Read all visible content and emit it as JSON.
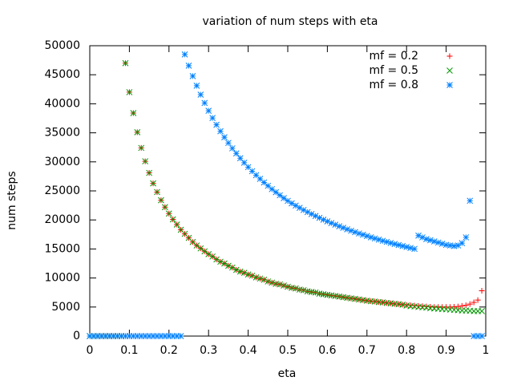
{
  "chart_data": {
    "type": "scatter",
    "title": "variation of num steps with eta",
    "x_label": "eta",
    "y_label": "num steps",
    "x": [
      0,
      0.01,
      0.02,
      0.03,
      0.04,
      0.05,
      0.06,
      0.07,
      0.08,
      0.09,
      0.1,
      0.11,
      0.12,
      0.13,
      0.14,
      0.15,
      0.16,
      0.17,
      0.18,
      0.19,
      0.2,
      0.21,
      0.22,
      0.23,
      0.24,
      0.25,
      0.26,
      0.27,
      0.28,
      0.29,
      0.3,
      0.31,
      0.32,
      0.33,
      0.34,
      0.35,
      0.36,
      0.37,
      0.38,
      0.39,
      0.4,
      0.41,
      0.42,
      0.43,
      0.44,
      0.45,
      0.46,
      0.47,
      0.48,
      0.49,
      0.5,
      0.51,
      0.52,
      0.53,
      0.54,
      0.55,
      0.56,
      0.57,
      0.58,
      0.59,
      0.6,
      0.61,
      0.62,
      0.63,
      0.64,
      0.65,
      0.66,
      0.67,
      0.68,
      0.69,
      0.7,
      0.71,
      0.72,
      0.73,
      0.74,
      0.75,
      0.76,
      0.77,
      0.78,
      0.79,
      0.8,
      0.81,
      0.82,
      0.83,
      0.84,
      0.85,
      0.86,
      0.87,
      0.88,
      0.89,
      0.9,
      0.91,
      0.92,
      0.93,
      0.94,
      0.95,
      0.96,
      0.97,
      0.98,
      0.99
    ],
    "series": [
      {
        "name": "mf = 0.2",
        "color": "#ff0000",
        "marker": "plus",
        "values": [
          0,
          0,
          0,
          0,
          0,
          0,
          0,
          0,
          0,
          47000,
          42000,
          38400,
          35100,
          32400,
          30100,
          28100,
          26300,
          24800,
          23400,
          22200,
          21100,
          20100,
          19200,
          18300,
          17600,
          16900,
          16200,
          15600,
          15100,
          14600,
          14100,
          13700,
          13200,
          12800,
          12500,
          12100,
          11800,
          11400,
          11100,
          10900,
          10600,
          10400,
          10100,
          9900,
          9700,
          9400,
          9200,
          9000,
          8900,
          8700,
          8500,
          8300,
          8200,
          8000,
          7900,
          7700,
          7600,
          7500,
          7300,
          7200,
          7100,
          7000,
          6900,
          6800,
          6700,
          6600,
          6500,
          6400,
          6300,
          6200,
          6100,
          6000,
          5950,
          5850,
          5800,
          5700,
          5650,
          5550,
          5500,
          5400,
          5350,
          5300,
          5250,
          5200,
          5150,
          5100,
          5050,
          5000,
          5000,
          5000,
          5000,
          5000,
          5050,
          5100,
          5200,
          5300,
          5500,
          5800,
          6200,
          7800
        ]
      },
      {
        "name": "mf = 0.5",
        "color": "#009900",
        "marker": "cross",
        "values": [
          0,
          0,
          0,
          0,
          0,
          0,
          0,
          0,
          0,
          47000,
          42000,
          38400,
          35100,
          32400,
          30100,
          28100,
          26300,
          24800,
          23400,
          22200,
          21100,
          20100,
          19200,
          18300,
          17600,
          16900,
          16200,
          15600,
          15100,
          14600,
          14100,
          13700,
          13200,
          12800,
          12500,
          12100,
          11800,
          11400,
          11100,
          10900,
          10600,
          10400,
          10100,
          9900,
          9700,
          9400,
          9200,
          9000,
          8900,
          8700,
          8500,
          8300,
          8200,
          8000,
          7900,
          7700,
          7600,
          7500,
          7300,
          7200,
          7100,
          7000,
          6900,
          6800,
          6700,
          6600,
          6500,
          6400,
          6300,
          6200,
          6100,
          6000,
          5950,
          5850,
          5800,
          5700,
          5650,
          5550,
          5500,
          5400,
          5250,
          5150,
          5100,
          5000,
          4950,
          4900,
          4800,
          4750,
          4700,
          4650,
          4600,
          4550,
          4500,
          4450,
          4400,
          4400,
          4350,
          4300,
          4300,
          4300
        ]
      },
      {
        "name": "mf = 0.8",
        "color": "#0080ff",
        "marker": "star",
        "values": [
          0,
          0,
          0,
          0,
          0,
          0,
          0,
          0,
          0,
          0,
          0,
          0,
          0,
          0,
          0,
          0,
          0,
          0,
          0,
          0,
          0,
          0,
          0,
          0,
          48500,
          46560,
          44770,
          43110,
          41570,
          40140,
          38800,
          37550,
          36380,
          35270,
          34240,
          33260,
          32330,
          31460,
          30630,
          29850,
          29100,
          28390,
          27710,
          27070,
          26450,
          25870,
          25300,
          24770,
          24250,
          23760,
          23280,
          22860,
          22470,
          22080,
          21710,
          21350,
          21010,
          20680,
          20360,
          20050,
          19750,
          19460,
          19180,
          18910,
          18650,
          18390,
          18140,
          17900,
          17670,
          17450,
          17230,
          17010,
          16810,
          16610,
          16410,
          16220,
          16030,
          15850,
          15680,
          15500,
          15340,
          15170,
          15010,
          17300,
          17000,
          16700,
          16500,
          16300,
          16100,
          15900,
          15700,
          15600,
          15500,
          15600,
          16000,
          17000,
          23300,
          0,
          0,
          0
        ]
      }
    ],
    "xlim": [
      0,
      1
    ],
    "xticks": [
      0,
      0.1,
      0.2,
      0.3,
      0.4,
      0.5,
      0.6,
      0.7,
      0.8,
      0.9,
      1
    ],
    "ylim": [
      0,
      50000
    ],
    "yticks": [
      0,
      5000,
      10000,
      15000,
      20000,
      25000,
      30000,
      35000,
      40000,
      45000,
      50000
    ],
    "grid": false,
    "legend": "top-right"
  }
}
